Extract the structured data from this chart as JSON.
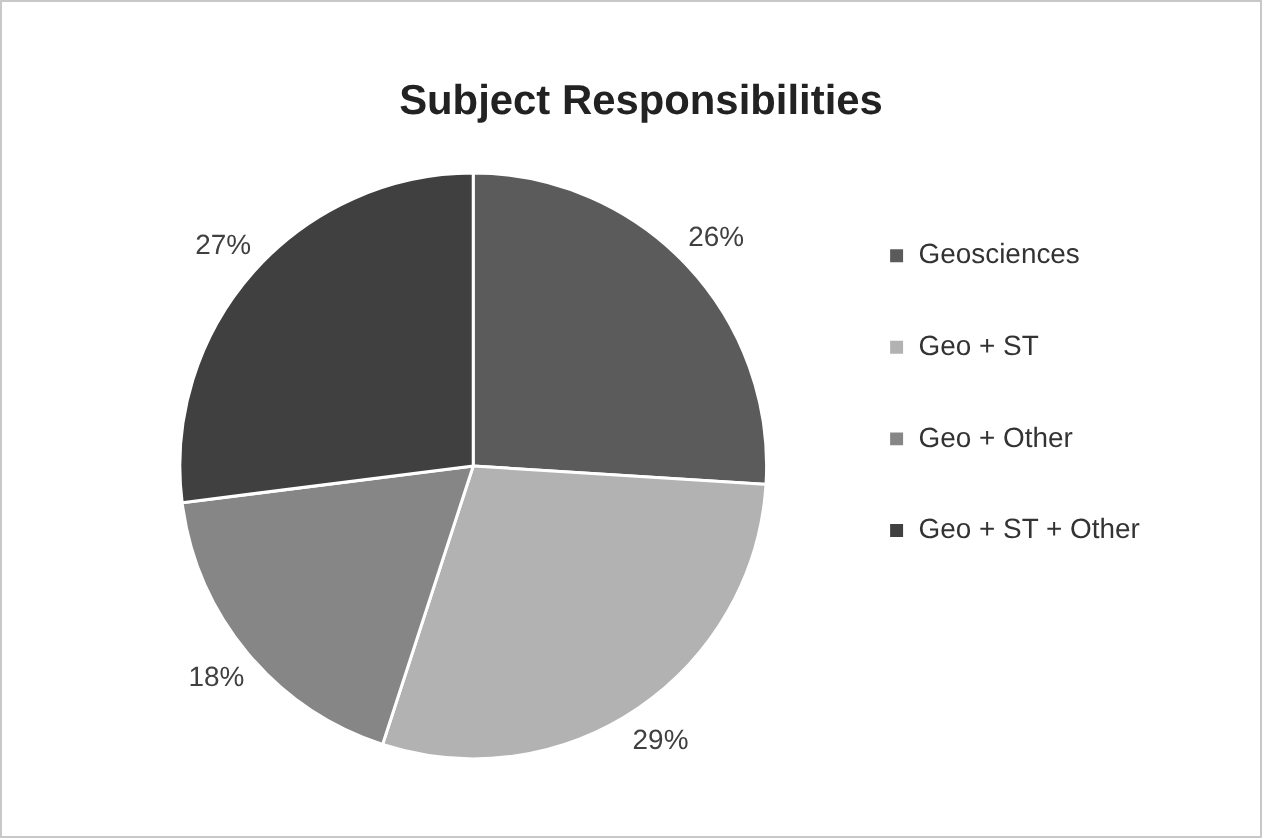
{
  "chart_data": {
    "type": "pie",
    "title": "Subject Responsibilities",
    "categories": [
      "Geosciences",
      "Geo + ST",
      "Geo + Other",
      "Geo + ST + Other"
    ],
    "values": [
      26,
      29,
      18,
      27
    ],
    "colors": [
      "#5b5b5b",
      "#b2b2b2",
      "#868686",
      "#404040"
    ],
    "value_labels": [
      "26%",
      "29%",
      "18%",
      "27%"
    ],
    "legend": "right"
  }
}
